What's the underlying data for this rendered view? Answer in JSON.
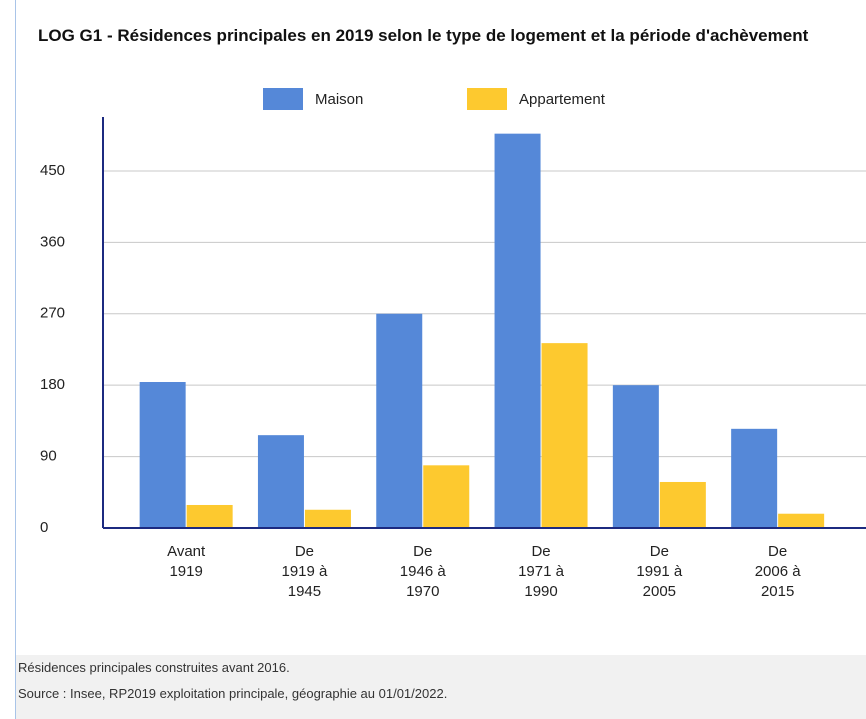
{
  "chart_data": {
    "type": "bar",
    "title": "LOG G1 - Résidences principales en 2019 selon le type de logement et la période d'achèvement",
    "categories": [
      "Avant\n1919",
      "De\n1919 à\n1945",
      "De\n1946 à\n1970",
      "De\n1971 à\n1990",
      "De\n1991 à\n2005",
      "De\n2006 à\n2015"
    ],
    "series": [
      {
        "name": "Maison",
        "color": "#5588d8",
        "values": [
          184,
          117,
          270,
          497,
          180,
          125
        ]
      },
      {
        "name": "Appartement",
        "color": "#fdc92f",
        "values": [
          29,
          23,
          79,
          233,
          58,
          18
        ]
      }
    ],
    "ylim": [
      0,
      518
    ],
    "yticks": [
      0,
      90,
      180,
      270,
      360,
      450
    ],
    "grid": true,
    "legend": "top",
    "notes": [
      "Résidences principales construites avant 2016.",
      "Source : Insee, RP2019 exploitation principale, géographie au 01/01/2022."
    ]
  }
}
